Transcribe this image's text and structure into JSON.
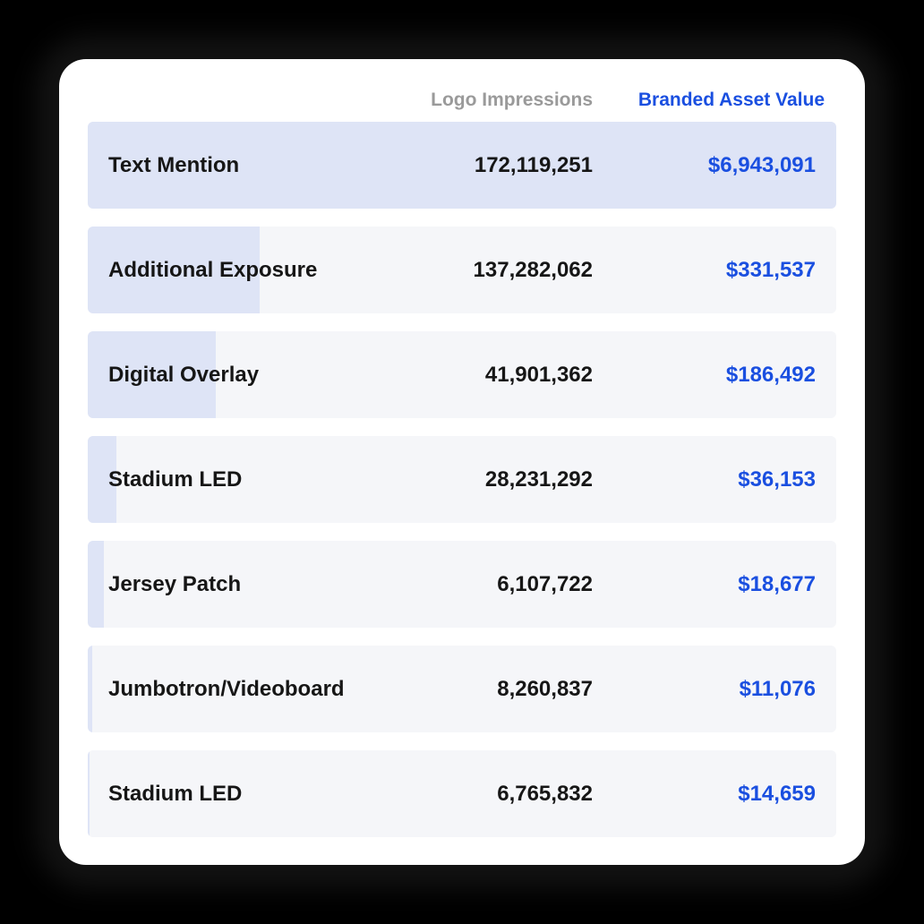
{
  "colors": {
    "accent": "#1a4fe0",
    "bar": "#dee4f6",
    "row_bg": "#f5f6f9",
    "header_muted": "#9a9a9a",
    "text": "#161616"
  },
  "header": {
    "impressions_label": "Logo Impressions",
    "value_label": "Branded Asset Value"
  },
  "rows": [
    {
      "label": "Text Mention",
      "impressions": "172,119,251",
      "value": "$6,943,091",
      "bar_pct": 100
    },
    {
      "label": "Additional Exposure",
      "impressions": "137,282,062",
      "value": "$331,537",
      "bar_pct": 23
    },
    {
      "label": "Digital Overlay",
      "impressions": "41,901,362",
      "value": "$186,492",
      "bar_pct": 17.1
    },
    {
      "label": "Stadium LED",
      "impressions": "28,231,292",
      "value": "$36,153",
      "bar_pct": 3.8
    },
    {
      "label": "Jersey Patch",
      "impressions": "6,107,722",
      "value": "$18,677",
      "bar_pct": 2.1
    },
    {
      "label": "Jumbotron/Videoboard",
      "impressions": "8,260,837",
      "value": "$11,076",
      "bar_pct": 0.6
    },
    {
      "label": "Stadium LED",
      "impressions": "6,765,832",
      "value": "$14,659",
      "bar_pct": 0.25
    }
  ]
}
